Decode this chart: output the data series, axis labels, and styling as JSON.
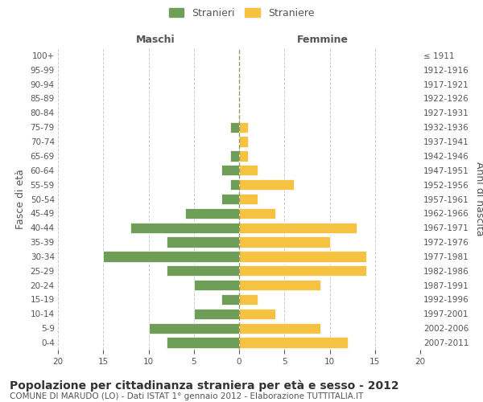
{
  "age_groups_bottom_to_top": [
    "0-4",
    "5-9",
    "10-14",
    "15-19",
    "20-24",
    "25-29",
    "30-34",
    "35-39",
    "40-44",
    "45-49",
    "50-54",
    "55-59",
    "60-64",
    "65-69",
    "70-74",
    "75-79",
    "80-84",
    "85-89",
    "90-94",
    "95-99",
    "100+"
  ],
  "birth_years_bottom_to_top": [
    "2007-2011",
    "2002-2006",
    "1997-2001",
    "1992-1996",
    "1987-1991",
    "1982-1986",
    "1977-1981",
    "1972-1976",
    "1967-1971",
    "1962-1966",
    "1957-1961",
    "1952-1956",
    "1947-1951",
    "1942-1946",
    "1937-1941",
    "1932-1936",
    "1927-1931",
    "1922-1926",
    "1917-1921",
    "1912-1916",
    "≤ 1911"
  ],
  "males_bottom_to_top": [
    8,
    10,
    5,
    2,
    5,
    8,
    15,
    8,
    12,
    6,
    2,
    1,
    2,
    1,
    0,
    1,
    0,
    0,
    0,
    0,
    0
  ],
  "females_bottom_to_top": [
    12,
    9,
    4,
    2,
    9,
    14,
    14,
    10,
    13,
    4,
    2,
    6,
    2,
    1,
    1,
    1,
    0,
    0,
    0,
    0,
    0
  ],
  "male_color": "#6f9e58",
  "female_color": "#f5c242",
  "bar_edge_color": "white",
  "grid_color": "#cccccc",
  "bg_color": "#ffffff",
  "title": "Popolazione per cittadinanza straniera per età e sesso - 2012",
  "subtitle": "COMUNE DI MARUDO (LO) - Dati ISTAT 1° gennaio 2012 - Elaborazione TUTTITALIA.IT",
  "xlabel_left": "Maschi",
  "xlabel_right": "Femmine",
  "ylabel_left": "Fasce di età",
  "ylabel_right": "Anni di nascita",
  "legend_male": "Stranieri",
  "legend_female": "Straniere",
  "xlim": 20,
  "center_line_color": "#999966",
  "title_fontsize": 10,
  "subtitle_fontsize": 7.5,
  "tick_fontsize": 7.5,
  "label_fontsize": 9
}
